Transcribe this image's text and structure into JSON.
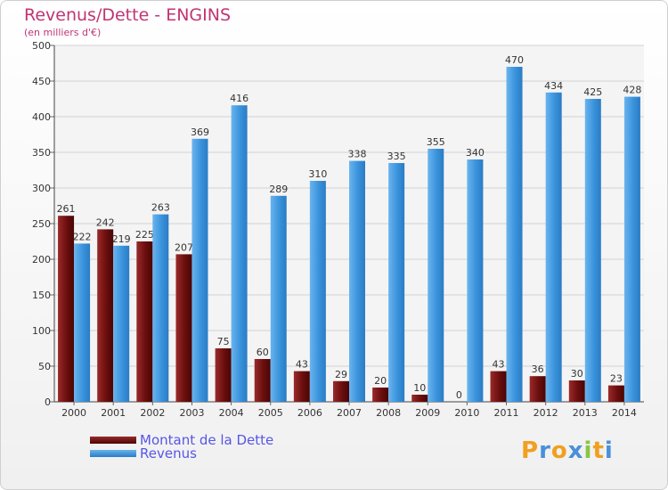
{
  "chart_data": {
    "type": "bar",
    "title": "Revenus/Dette - ENGINS",
    "subtitle": "(en milliers d'€)",
    "categories": [
      "2000",
      "2001",
      "2002",
      "2003",
      "2004",
      "2005",
      "2006",
      "2007",
      "2008",
      "2009",
      "2010",
      "2011",
      "2012",
      "2013",
      "2014"
    ],
    "series": [
      {
        "name": "Montant de la Dette",
        "color": "#7a0f0f",
        "values": [
          261,
          242,
          225,
          207,
          75,
          60,
          43,
          29,
          20,
          10,
          0,
          43,
          36,
          30,
          23
        ]
      },
      {
        "name": "Revenus",
        "color": "#3a93dc",
        "values": [
          222,
          219,
          263,
          369,
          416,
          289,
          310,
          338,
          335,
          355,
          340,
          470,
          434,
          425,
          428
        ]
      }
    ],
    "ylim": [
      0,
      500
    ],
    "yticks": [
      0,
      50,
      100,
      150,
      200,
      250,
      300,
      350,
      400,
      450,
      500
    ],
    "grid": true,
    "legend_position": "bottom-left",
    "xlabel": "",
    "ylabel": ""
  },
  "logo": {
    "text": "Proxiti",
    "letters": [
      "P",
      "r",
      "o",
      "x",
      "i",
      "t",
      "i"
    ],
    "colors": [
      "#f0a020",
      "#4a90d9",
      "#f0a020",
      "#4a90d9",
      "#8bc34a",
      "#f0a020",
      "#4a90d9"
    ]
  }
}
